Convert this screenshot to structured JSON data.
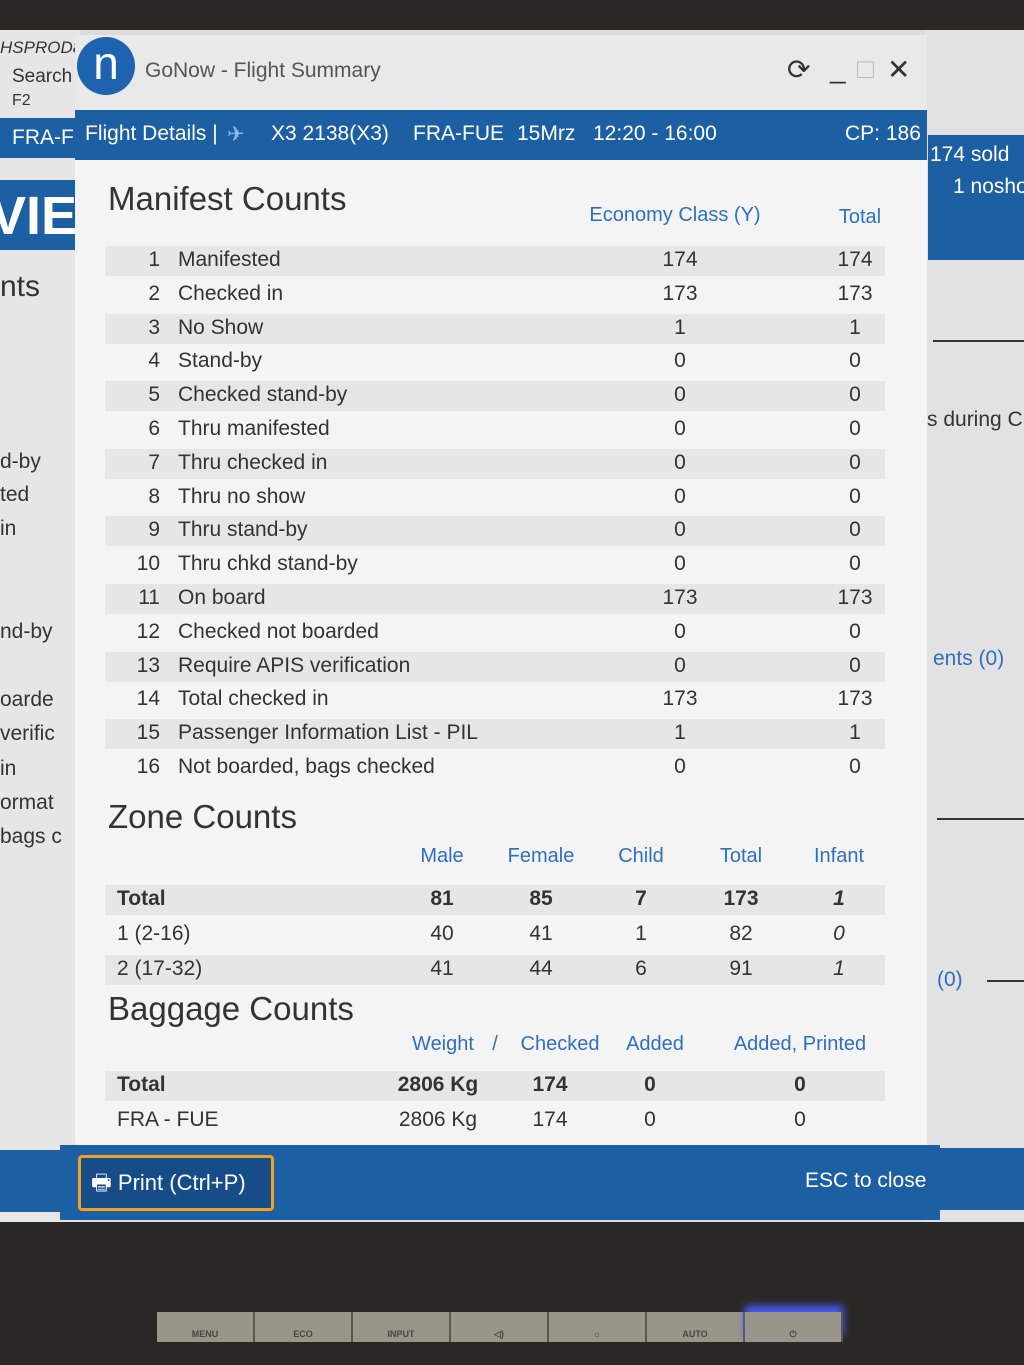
{
  "background": {
    "left": [
      "HSPROD8",
      "Search",
      "F2",
      "FRA-F",
      "VIE",
      "nts",
      "d-by",
      "ted",
      "in",
      "nd-by",
      "oarde",
      "verific",
      "in",
      "ormat",
      "bags c"
    ],
    "right": [
      "174 sold",
      "1 nosho",
      "s during C",
      "ents (0)",
      "(0)"
    ]
  },
  "window": {
    "title": "GoNow - Flight Summary",
    "logo": "n"
  },
  "header": {
    "label": "Flight Details |",
    "flight": "X3 2138(X3)",
    "route": "FRA-FUE",
    "date": "15Mrz",
    "time": "12:20 - 16:00",
    "cp": "CP: 186"
  },
  "manifest": {
    "title": "Manifest Counts",
    "columns": [
      "Economy Class (Y)",
      "Total"
    ],
    "rows": [
      {
        "n": "1",
        "label": "Manifested",
        "y": "174",
        "total": "174"
      },
      {
        "n": "2",
        "label": "Checked in",
        "y": "173",
        "total": "173"
      },
      {
        "n": "3",
        "label": "No Show",
        "y": "1",
        "total": "1"
      },
      {
        "n": "4",
        "label": "Stand-by",
        "y": "0",
        "total": "0"
      },
      {
        "n": "5",
        "label": "Checked stand-by",
        "y": "0",
        "total": "0"
      },
      {
        "n": "6",
        "label": "Thru manifested",
        "y": "0",
        "total": "0"
      },
      {
        "n": "7",
        "label": "Thru checked in",
        "y": "0",
        "total": "0"
      },
      {
        "n": "8",
        "label": "Thru no show",
        "y": "0",
        "total": "0"
      },
      {
        "n": "9",
        "label": "Thru stand-by",
        "y": "0",
        "total": "0"
      },
      {
        "n": "10",
        "label": "Thru chkd stand-by",
        "y": "0",
        "total": "0"
      },
      {
        "n": "11",
        "label": "On board",
        "y": "173",
        "total": "173"
      },
      {
        "n": "12",
        "label": "Checked not boarded",
        "y": "0",
        "total": "0"
      },
      {
        "n": "13",
        "label": "Require APIS verification",
        "y": "0",
        "total": "0"
      },
      {
        "n": "14",
        "label": "Total checked in",
        "y": "173",
        "total": "173"
      },
      {
        "n": "15",
        "label": "Passenger Information List - PIL",
        "y": "1",
        "total": "1"
      },
      {
        "n": "16",
        "label": "Not boarded, bags checked",
        "y": "0",
        "total": "0"
      }
    ]
  },
  "zone": {
    "title": "Zone Counts",
    "columns": [
      "Male",
      "Female",
      "Child",
      "Total",
      "Infant"
    ],
    "rows": [
      {
        "label": "Total",
        "values": [
          "81",
          "85",
          "7",
          "173",
          "1"
        ]
      },
      {
        "label": "1 (2-16)",
        "values": [
          "40",
          "41",
          "1",
          "82",
          "0"
        ]
      },
      {
        "label": "2 (17-32)",
        "values": [
          "41",
          "44",
          "6",
          "91",
          "1"
        ]
      }
    ]
  },
  "baggage": {
    "title": "Baggage Counts",
    "columns": [
      "Weight",
      "/",
      "Checked",
      "Added",
      "Added, Printed"
    ],
    "rows": [
      {
        "label": "Total",
        "values": [
          "2806 Kg",
          "174",
          "0",
          "0"
        ]
      },
      {
        "label": "FRA - FUE",
        "values": [
          "2806 Kg",
          "174",
          "0",
          "0"
        ]
      }
    ]
  },
  "footer": {
    "print": "Print (Ctrl+P)",
    "esc": "ESC to close"
  },
  "monitor_buttons": [
    "MENU",
    "ECO",
    "INPUT",
    "◁)",
    "☼",
    "AUTO",
    "⏻"
  ],
  "colors": {
    "accent": "#1d5fa3",
    "header_text": "#2f6fc0",
    "focus": "#f0a020"
  }
}
